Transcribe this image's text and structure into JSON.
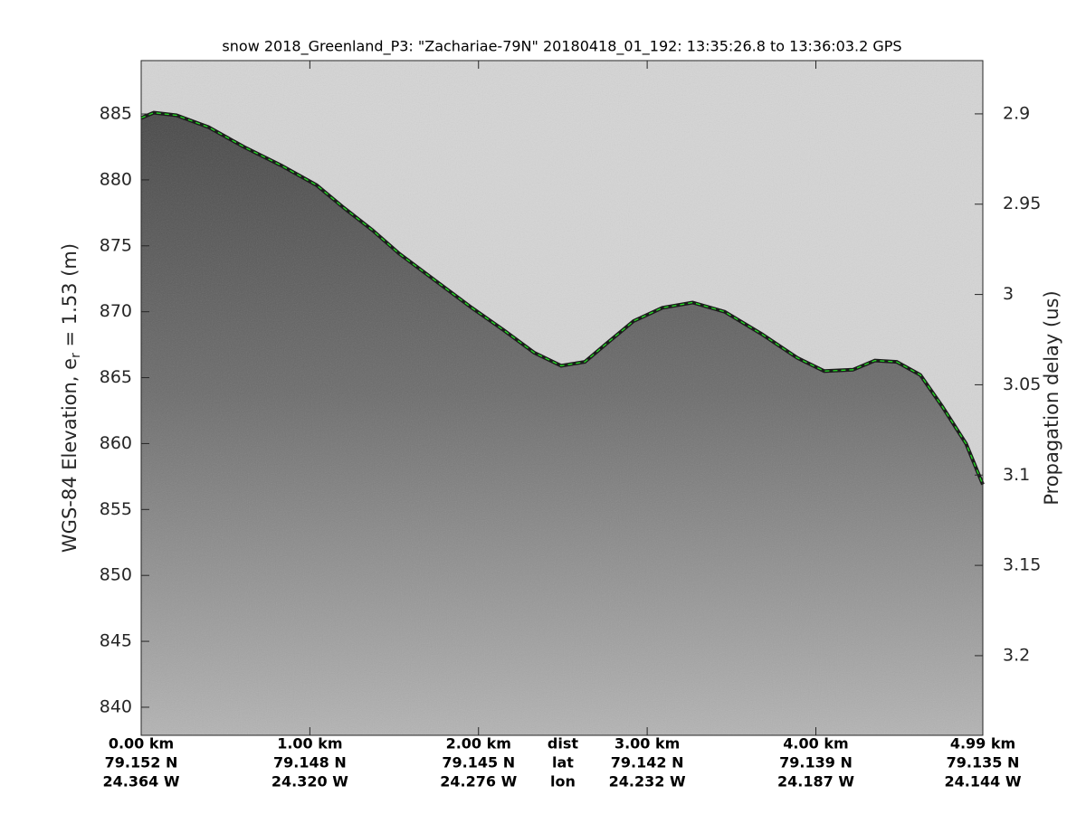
{
  "chart_data": {
    "type": "echogram",
    "title": "snow 2018_Greenland_P3: \"Zachariae-79N\"  20180418_01_192: 13:35:26.8 to 13:36:03.2 GPS",
    "ylabel_parts": [
      "WGS-84 Elevation, e",
      "r",
      " = 1.53 (m)"
    ],
    "y2label": "Propagation delay (us)",
    "xlim": [
      0,
      4.99
    ],
    "ylim": [
      837.87,
      889.05
    ],
    "yticks": [
      840,
      845,
      850,
      855,
      860,
      865,
      870,
      875,
      880,
      885
    ],
    "y2lim": [
      2.8705,
      3.2441
    ],
    "y2ticks": [
      2.9,
      2.95,
      3,
      3.05,
      3.1,
      3.15,
      3.2
    ],
    "xticks": [
      {
        "value": 0,
        "label": "0.00 km"
      },
      {
        "value": 1,
        "label": "1.00 km"
      },
      {
        "value": 2,
        "label": "2.00 km"
      },
      {
        "value": 3,
        "label": "3.00 km"
      },
      {
        "value": 4,
        "label": "4.00 km"
      },
      {
        "value": 4.99,
        "label": "4.99 km"
      }
    ],
    "xtick_lat": [
      "79.152 N",
      "79.148 N",
      "79.145 N",
      "79.142 N",
      "79.139 N",
      "79.135 N"
    ],
    "xtick_lon": [
      "24.364 W",
      "24.320 W",
      "24.276 W",
      "24.232 W",
      "24.187 W",
      "24.144 W"
    ],
    "xtick_row_names": [
      "dist",
      "lat",
      "lon"
    ],
    "surface": {
      "color": "#22dd22",
      "x": [
        0,
        0.075,
        0.21,
        0.4,
        0.61,
        0.83,
        1.04,
        1.2,
        1.37,
        1.53,
        1.74,
        1.96,
        2.15,
        2.33,
        2.49,
        2.63,
        2.76,
        2.92,
        3.09,
        3.27,
        3.46,
        3.68,
        3.89,
        4.05,
        4.22,
        4.35,
        4.48,
        4.62,
        4.75,
        4.89,
        4.99
      ],
      "values": [
        884.7,
        885.1,
        884.9,
        884.0,
        882.5,
        881.1,
        879.6,
        877.9,
        876.2,
        874.4,
        872.4,
        870.3,
        868.6,
        866.9,
        865.9,
        866.2,
        867.6,
        869.3,
        870.3,
        870.7,
        870.0,
        868.3,
        866.5,
        865.5,
        865.6,
        866.3,
        866.2,
        865.2,
        862.8,
        860.0,
        856.9
      ]
    }
  }
}
